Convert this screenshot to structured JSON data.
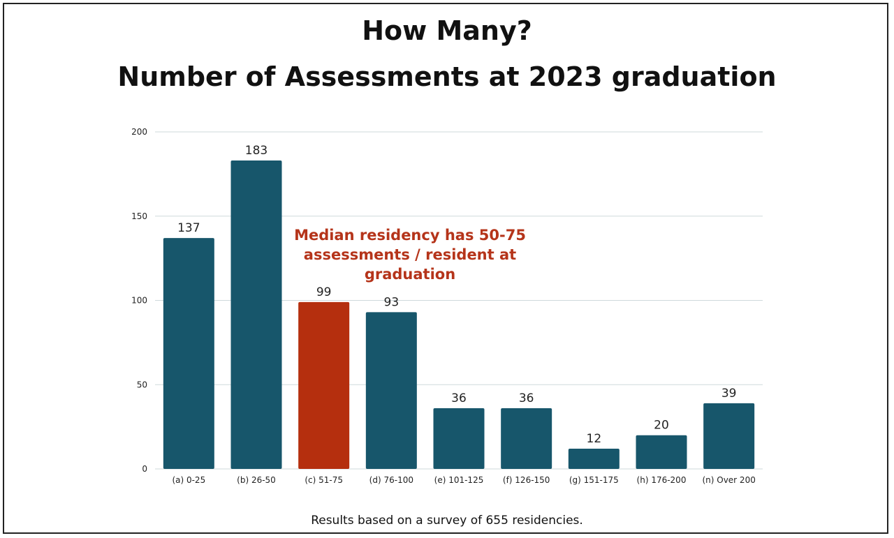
{
  "chart_data": {
    "type": "bar",
    "title": "How Many?",
    "subtitle": "Number of Assessments at 2023 graduation",
    "categories": [
      "(a) 0-25",
      "(b) 26-50",
      "(c) 51-75",
      "(d) 76-100",
      "(e) 101-125",
      "(f) 126-150",
      "(g) 151-175",
      "(h) 176-200",
      "(n) Over 200"
    ],
    "values": [
      137,
      183,
      99,
      93,
      36,
      36,
      12,
      20,
      39
    ],
    "highlight_index": 2,
    "ylim": [
      0,
      200
    ],
    "yticks": [
      0,
      50,
      100,
      150,
      200
    ],
    "grid": true,
    "xlabel": "",
    "ylabel": "",
    "annotation": "Median residency has 50-75\nassessments / resident at\ngraduation",
    "footnote": "Results based on a survey of 655 residencies."
  },
  "colors": {
    "bar": "#17566b",
    "highlight": "#b52f0e",
    "annotation": "#b5341a",
    "grid": "#cfd9db"
  }
}
